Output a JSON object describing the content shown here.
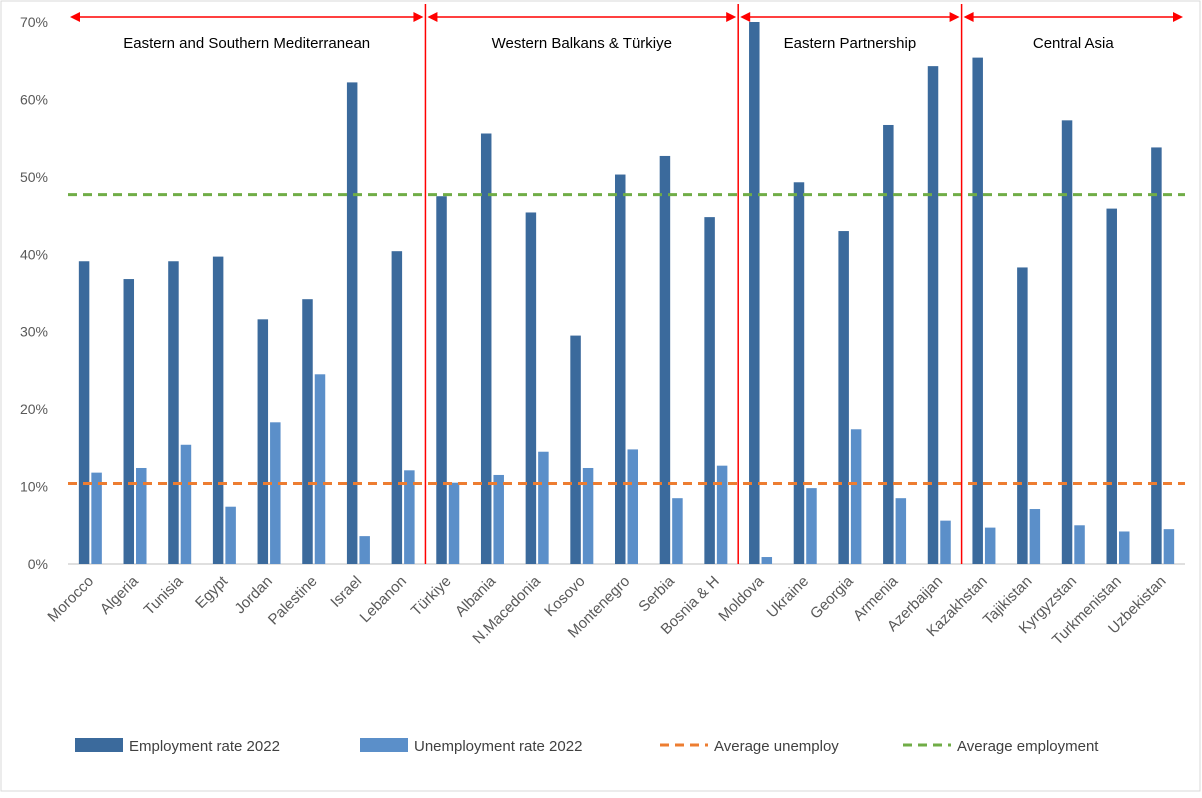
{
  "chart_data": {
    "type": "bar",
    "categories": [
      "Morocco",
      "Algeria",
      "Tunisia",
      "Egypt",
      "Jordan",
      "Palestine",
      "Israel",
      "Lebanon",
      "Türkiye",
      "Albania",
      "N.Macedonia",
      "Kosovo",
      "Montenegro",
      "Serbia",
      "Bosnia & H",
      "Moldova",
      "Ukraine",
      "Georgia",
      "Armenia",
      "Azerbaijan",
      "Kazakhstan",
      "Tajikistan",
      "Kyrgyzstan",
      "Turkmenistan",
      "Uzbekistan"
    ],
    "series": [
      {
        "name": "Employment rate 2022",
        "color": "#3b6a9c",
        "values": [
          39.1,
          36.8,
          39.1,
          39.7,
          31.6,
          34.2,
          62.2,
          40.4,
          47.5,
          55.6,
          45.4,
          29.5,
          50.3,
          52.7,
          44.8,
          70.0,
          49.3,
          43.0,
          56.7,
          64.3,
          65.4,
          38.3,
          57.3,
          45.9,
          53.8
        ]
      },
      {
        "name": "Unemployment rate 2022",
        "color": "#5b8fc9",
        "values": [
          11.8,
          12.4,
          15.4,
          7.4,
          18.3,
          24.5,
          3.6,
          12.1,
          10.5,
          11.5,
          14.5,
          12.4,
          14.8,
          8.5,
          12.7,
          0.9,
          9.8,
          17.4,
          8.5,
          5.6,
          4.7,
          7.1,
          5.0,
          4.2,
          4.5
        ]
      }
    ],
    "reference_lines": [
      {
        "name": "Average unemploy",
        "value": 10.4,
        "color": "#ed7d31",
        "style": "dashed"
      },
      {
        "name": "Average employment",
        "value": 47.7,
        "color": "#70ad47",
        "style": "dashed"
      }
    ],
    "groups": [
      {
        "label": "Eastern and Southern Mediterranean",
        "start": 0,
        "end": 7
      },
      {
        "label": "Western Balkans & Türkiye",
        "start": 8,
        "end": 14
      },
      {
        "label": "Eastern Partnership",
        "start": 15,
        "end": 19
      },
      {
        "label": "Central Asia",
        "start": 20,
        "end": 24
      }
    ],
    "group_divider_color": "#ff0000",
    "ylim": [
      0,
      70
    ],
    "yticks": [
      0,
      10,
      20,
      30,
      40,
      50,
      60,
      70
    ],
    "ytick_suffix": "%",
    "legend_position": "bottom",
    "grid": false
  }
}
